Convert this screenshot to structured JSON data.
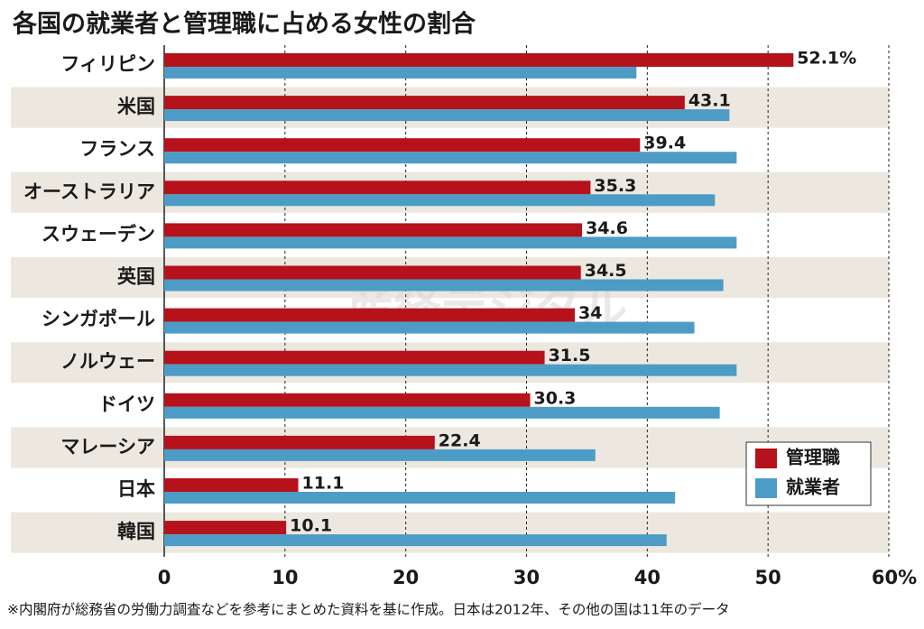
{
  "chart_data": {
    "type": "hbar",
    "title": "各国の就業者と管理職に占める女性の割合",
    "categories": [
      "フィリピン",
      "米国",
      "フランス",
      "オーストラリア",
      "スウェーデン",
      "英国",
      "シンガポール",
      "ノルウェー",
      "ドイツ",
      "マレーシア",
      "日本",
      "韓国"
    ],
    "series": [
      {
        "name": "管理職",
        "color": "#b5121b",
        "values": [
          52.1,
          43.1,
          39.4,
          35.3,
          34.6,
          34.5,
          34,
          31.5,
          30.3,
          22.4,
          11.1,
          10.1
        ],
        "value_labels": [
          "52.1%",
          "43.1",
          "39.4",
          "35.3",
          "34.6",
          "34.5",
          "34",
          "31.5",
          "30.3",
          "22.4",
          "11.1",
          "10.1"
        ]
      },
      {
        "name": "就業者",
        "color": "#4d9cc6",
        "values": [
          39.1,
          46.8,
          47.4,
          45.6,
          47.4,
          46.3,
          43.9,
          47.4,
          46.0,
          35.7,
          42.3,
          41.6
        ]
      }
    ],
    "xlim": [
      0,
      60
    ],
    "xticks": [
      0,
      10,
      20,
      30,
      40,
      50,
      {
        "value": 60,
        "label": "60%"
      }
    ],
    "grid": true,
    "legend": "lower right",
    "watermark": "産経デジタル",
    "footnote": "※内閣府が総務省の労働力調査などを参考にまとめた資料を基に作成。日本は2012年、その他の国は11年のデータ"
  }
}
